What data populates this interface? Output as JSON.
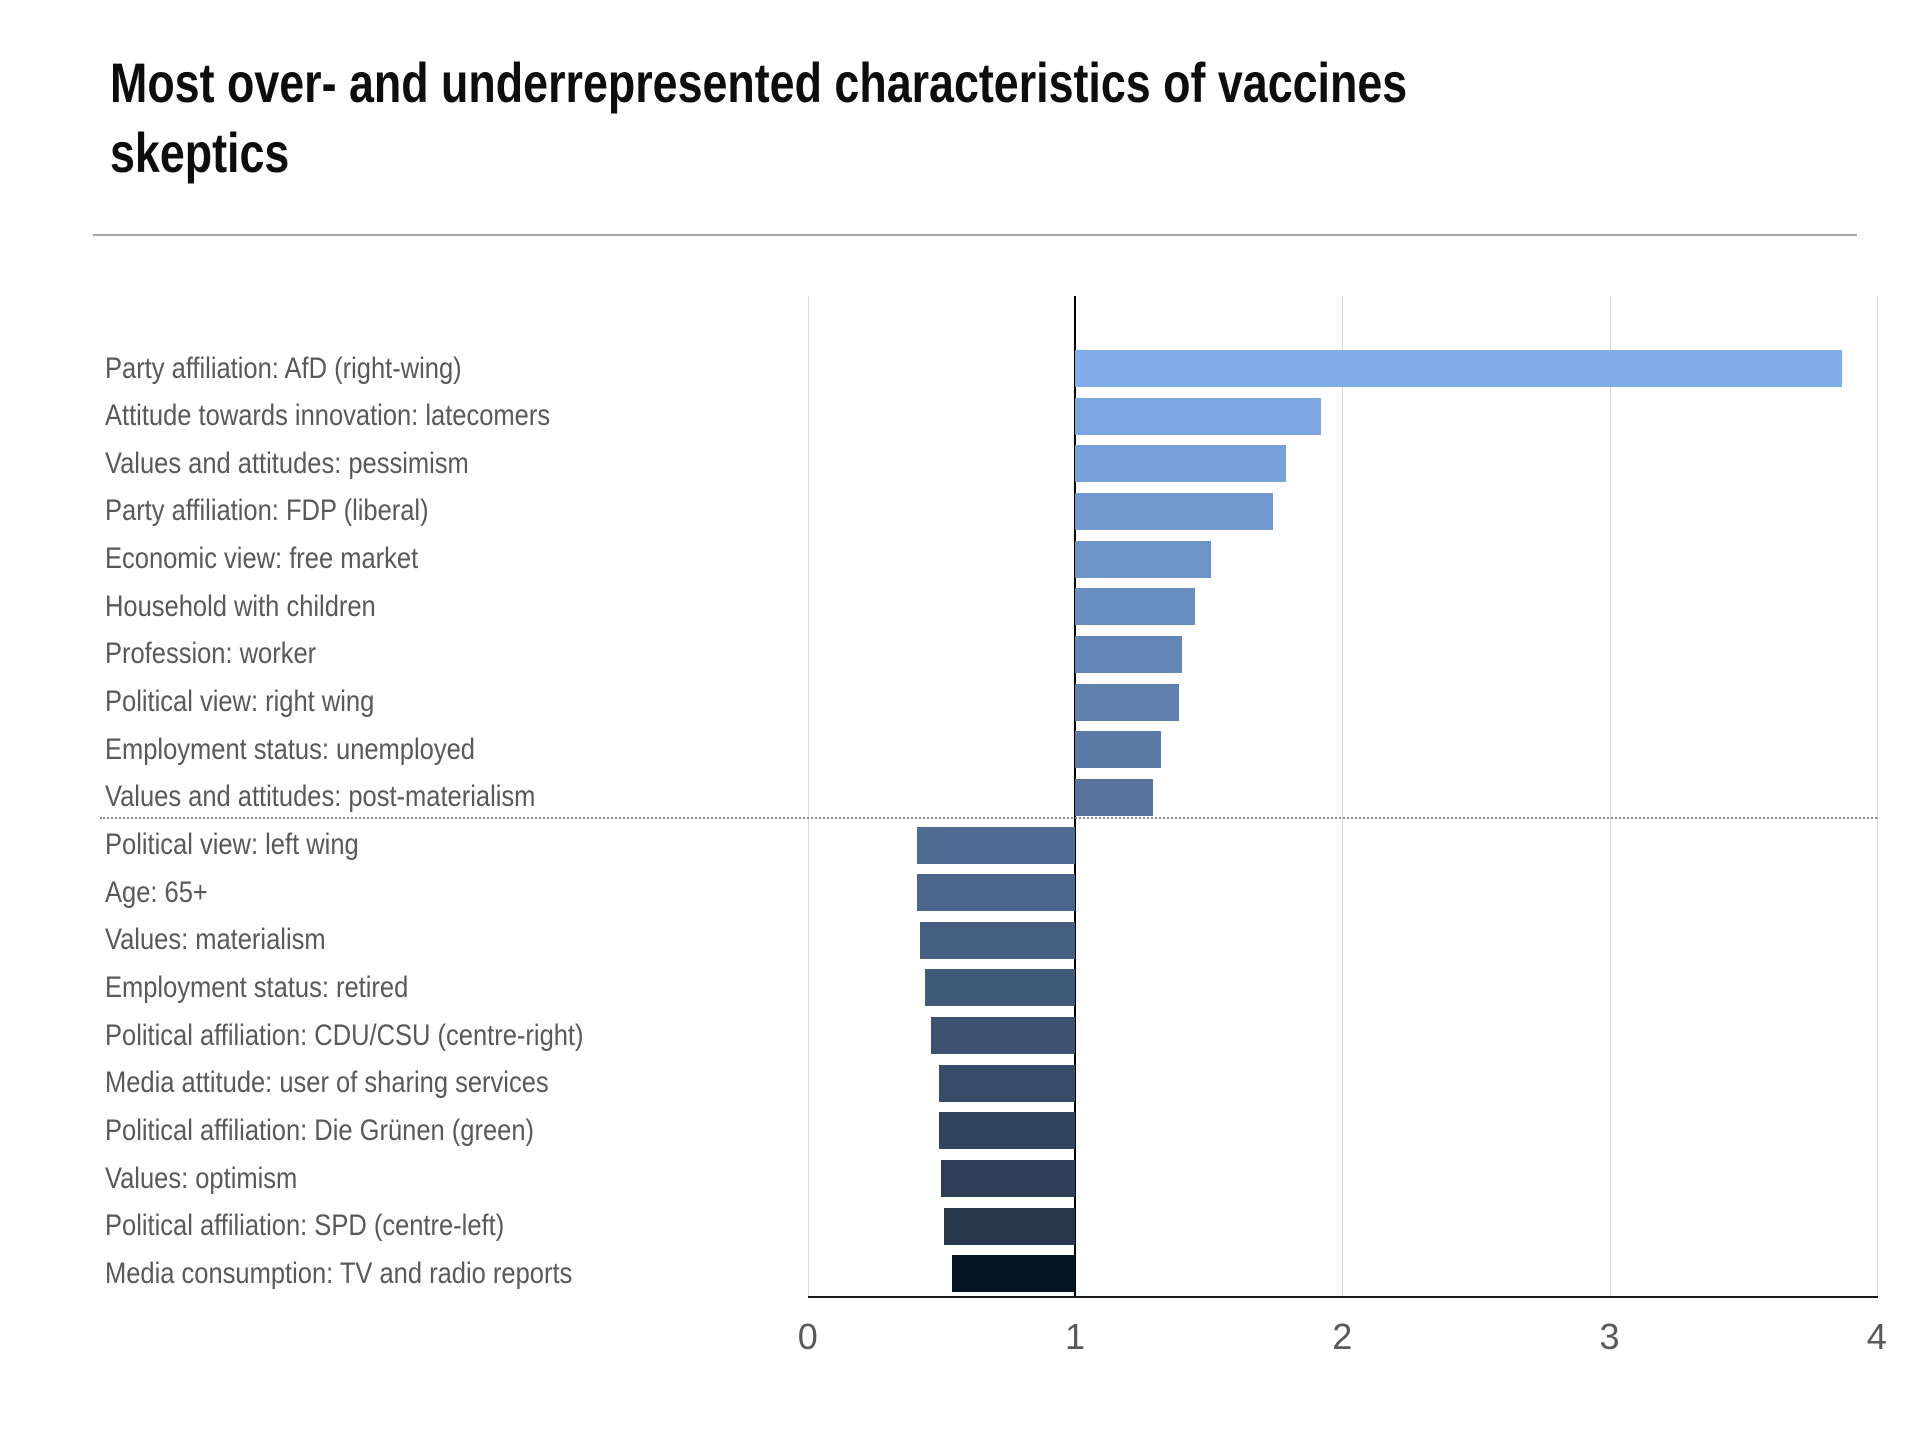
{
  "title": {
    "full": "Most over- and underrepresented characteristics of vaccines skeptics",
    "lines": [
      "Most over- and underrepresented characteristics of vaccines",
      "skeptics"
    ]
  },
  "colors": {
    "background": "#ffffff",
    "title_text": "#0d0d0d",
    "title_rule": "#a6a6a6",
    "label_text": "#595959",
    "tick_text": "#595959",
    "gridline": "#d9d9d9",
    "baseline_line": "#000000",
    "axis_line": "#1a1a1a",
    "divider_dotted": "#8c8c8c"
  },
  "chart_data": {
    "type": "bar",
    "orientation": "horizontal",
    "title": "Most over- and underrepresented characteristics of vaccines skeptics",
    "baseline": 1,
    "xlim": [
      0,
      4
    ],
    "x_ticks": [
      "0",
      "1",
      "2",
      "3",
      "4"
    ],
    "grid": true,
    "legend_position": "none",
    "divider_after_index": 9,
    "categories": [
      "Party affiliation: AfD (right-wing)",
      "Attitude towards innovation: latecomers",
      "Values and attitudes: pessimism",
      "Party affiliation: FDP (liberal)",
      "Economic view: free market",
      "Household with children",
      "Profession: worker",
      "Political view: right wing",
      "Employment status: unemployed",
      "Values and attitudes: post-materialism",
      "Political view: left wing",
      "Age: 65+",
      "Values: materialism",
      "Employment status: retired",
      "Political affiliation: CDU/CSU (centre-right)",
      "Media attitude: user of sharing services",
      "Political affiliation: Die Grünen (green)",
      "Values: optimism",
      "Political affiliation: SPD (centre-left)",
      "Media consumption: TV and radio reports"
    ],
    "values": [
      3.87,
      1.92,
      1.79,
      1.74,
      1.51,
      1.45,
      1.4,
      1.39,
      1.32,
      1.29,
      0.41,
      0.41,
      0.42,
      0.44,
      0.46,
      0.49,
      0.49,
      0.5,
      0.51,
      0.54
    ],
    "bar_colors": [
      "#82ADEA",
      "#7DA7E1",
      "#78A0D9",
      "#739AD0",
      "#6E93C7",
      "#698DBE",
      "#6486B6",
      "#5F80AD",
      "#5A79A4",
      "#55739B",
      "#506C93",
      "#4B668A",
      "#465F81",
      "#415978",
      "#3C5270",
      "#374C67",
      "#32455E",
      "#2D3F56",
      "#28384C",
      "#041621"
    ]
  }
}
